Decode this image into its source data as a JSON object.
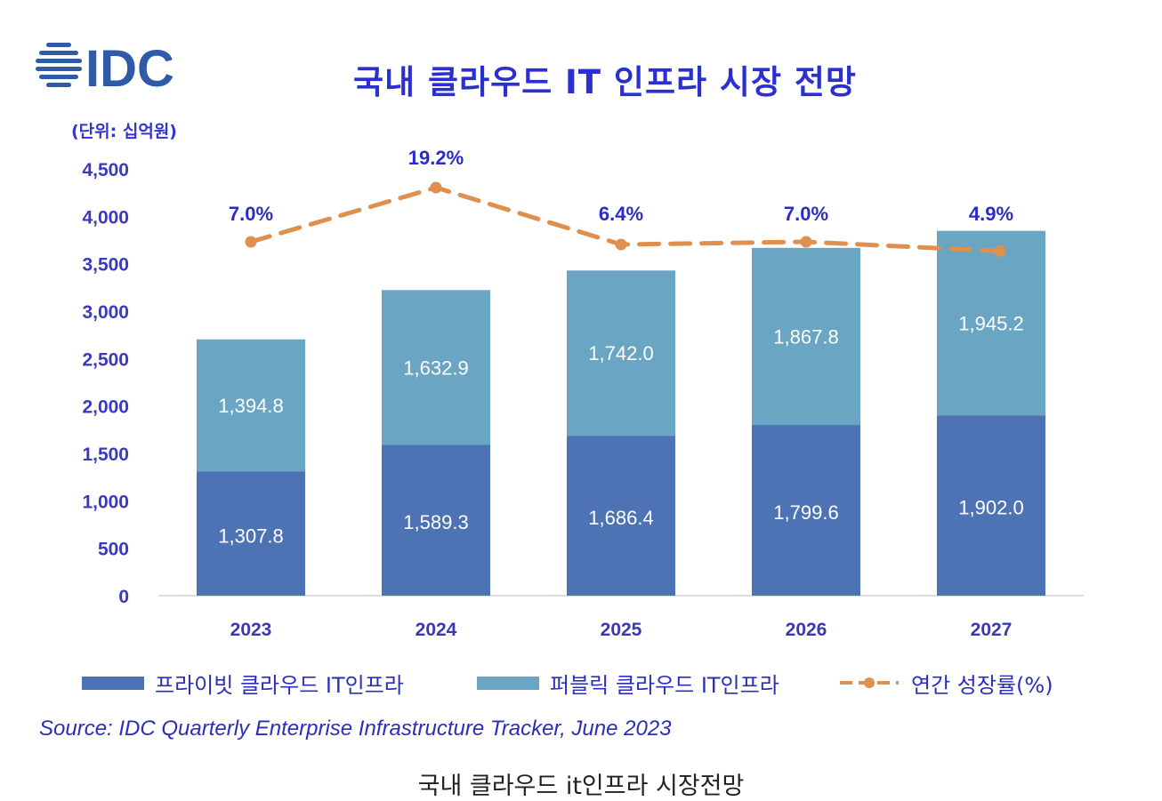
{
  "header": {
    "logo_text": "IDC",
    "title": "국내 클라우드 IT 인프라 시장 전망",
    "unit": "(단위: 십억원)"
  },
  "colors": {
    "private": "#4e73b5",
    "public": "#6aa6c4",
    "growth_line": "#e0904e",
    "axis_text": "#3a39c4",
    "title": "#2b2fcf"
  },
  "chart_data": {
    "type": "bar",
    "stacked": true,
    "title": "국내 클라우드 IT 인프라 시장 전망",
    "ylabel": "(단위: 십억원)",
    "xlabel": "",
    "ylim": [
      0,
      4500
    ],
    "y_ticks": [
      0,
      500,
      1000,
      1500,
      2000,
      2500,
      3000,
      3500,
      4000,
      4500
    ],
    "y_tick_labels": [
      "0",
      "500",
      "1,000",
      "1,500",
      "2,000",
      "2,500",
      "3,000",
      "3,500",
      "4,000",
      "4,500"
    ],
    "categories": [
      "2023",
      "2024",
      "2025",
      "2026",
      "2027"
    ],
    "series": [
      {
        "name": "프라이빗 클라우드 IT인프라",
        "values": [
          1307.8,
          1589.3,
          1686.4,
          1799.6,
          1902.0
        ],
        "labels": [
          "1,307.8",
          "1,589.3",
          "1,686.4",
          "1,799.6",
          "1,902.0"
        ]
      },
      {
        "name": "퍼블릭 클라우드 IT인프라",
        "values": [
          1394.8,
          1632.9,
          1742.0,
          1867.8,
          1945.2
        ],
        "labels": [
          "1,394.8",
          "1,632.9",
          "1,742.0",
          "1,867.8",
          "1,945.2"
        ]
      }
    ],
    "growth": {
      "name": "연간 성장률(%)",
      "values": [
        7.0,
        19.2,
        6.4,
        7.0,
        4.9
      ],
      "labels": [
        "7.0%",
        "19.2%",
        "6.4%",
        "7.0%",
        "4.9%"
      ]
    },
    "legend_position": "bottom",
    "grid": false
  },
  "footer": {
    "source": "Source: IDC Quarterly Enterprise Infrastructure Tracker, June 2023",
    "caption": "국내 클라우드 it인프라 시장전망"
  }
}
